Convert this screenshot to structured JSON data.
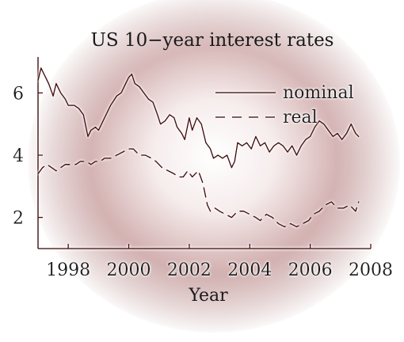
{
  "chart_data": {
    "type": "line",
    "title": "US 10−year interest rates",
    "xlabel": "Year",
    "ylabel": "",
    "xlim": [
      1997.0,
      2008.0
    ],
    "ylim": [
      1.0,
      7.0
    ],
    "x_ticks": [
      1998,
      2000,
      2002,
      2004,
      2006,
      2008
    ],
    "x_tick_labels": [
      "1998",
      "2000",
      "2002",
      "2004",
      "2006",
      "2008"
    ],
    "y_ticks": [
      2,
      4,
      6
    ],
    "y_tick_labels": [
      "2",
      "4",
      "6"
    ],
    "grid": false,
    "legend_position": "top-right",
    "series": [
      {
        "name": "nominal",
        "style": "solid",
        "color": "#4a0e0e",
        "x": [
          1997.0,
          1997.1,
          1997.2,
          1997.35,
          1997.5,
          1997.6,
          1997.75,
          1997.9,
          1998.0,
          1998.2,
          1998.35,
          1998.5,
          1998.65,
          1998.75,
          1998.9,
          1999.0,
          1999.2,
          1999.4,
          1999.6,
          1999.75,
          1999.9,
          2000.0,
          2000.1,
          2000.2,
          2000.35,
          2000.5,
          2000.65,
          2000.8,
          2000.95,
          2001.05,
          2001.2,
          2001.35,
          2001.5,
          2001.6,
          2001.75,
          2001.85,
          2002.0,
          2002.1,
          2002.25,
          2002.4,
          2002.55,
          2002.7,
          2002.8,
          2002.95,
          2003.1,
          2003.25,
          2003.4,
          2003.5,
          2003.6,
          2003.75,
          2003.9,
          2004.05,
          2004.2,
          2004.35,
          2004.5,
          2004.65,
          2004.8,
          2004.95,
          2005.1,
          2005.25,
          2005.4,
          2005.55,
          2005.7,
          2005.85,
          2006.0,
          2006.15,
          2006.3,
          2006.45,
          2006.6,
          2006.75,
          2006.9,
          2007.05,
          2007.2,
          2007.35,
          2007.5,
          2007.6
        ],
        "values": [
          6.4,
          6.8,
          6.6,
          6.3,
          5.9,
          6.3,
          6.0,
          5.8,
          5.6,
          5.6,
          5.5,
          5.3,
          4.6,
          4.8,
          4.9,
          4.8,
          5.2,
          5.6,
          5.9,
          6.0,
          6.3,
          6.5,
          6.6,
          6.3,
          6.2,
          6.0,
          5.8,
          5.7,
          5.3,
          5.0,
          5.1,
          5.3,
          5.2,
          4.9,
          4.7,
          4.5,
          5.2,
          4.8,
          5.2,
          5.0,
          4.4,
          4.2,
          3.9,
          4.0,
          3.9,
          4.0,
          3.6,
          3.8,
          4.4,
          4.3,
          4.4,
          4.2,
          4.6,
          4.3,
          4.4,
          4.1,
          4.3,
          4.4,
          4.3,
          4.1,
          4.3,
          4.0,
          4.3,
          4.5,
          4.6,
          4.9,
          5.1,
          5.0,
          4.8,
          4.6,
          4.7,
          4.5,
          4.7,
          5.0,
          4.7,
          4.6
        ]
      },
      {
        "name": "real",
        "style": "dashed",
        "color": "#4a0e0e",
        "x": [
          1997.0,
          1997.15,
          1997.3,
          1997.45,
          1997.6,
          1997.75,
          1997.9,
          1998.05,
          1998.25,
          1998.4,
          1998.6,
          1998.75,
          1998.9,
          1999.05,
          1999.2,
          1999.4,
          1999.6,
          1999.8,
          2000.0,
          2000.15,
          2000.35,
          2000.55,
          2000.75,
          2000.9,
          2001.1,
          2001.3,
          2001.5,
          2001.65,
          2001.8,
          2001.95,
          2002.1,
          2002.3,
          2002.45,
          2002.6,
          2002.7,
          2002.85,
          2003.0,
          2003.2,
          2003.4,
          2003.6,
          2003.8,
          2004.0,
          2004.2,
          2004.35,
          2004.55,
          2004.75,
          2004.95,
          2005.15,
          2005.35,
          2005.55,
          2005.75,
          2005.95,
          2006.1,
          2006.3,
          2006.5,
          2006.7,
          2006.9,
          2007.1,
          2007.3,
          2007.5,
          2007.6
        ],
        "values": [
          3.4,
          3.6,
          3.7,
          3.6,
          3.5,
          3.6,
          3.7,
          3.7,
          3.7,
          3.8,
          3.8,
          3.7,
          3.8,
          3.8,
          3.9,
          3.9,
          4.0,
          4.1,
          4.2,
          4.2,
          4.0,
          4.0,
          3.9,
          3.8,
          3.6,
          3.5,
          3.4,
          3.3,
          3.3,
          3.5,
          3.3,
          3.5,
          3.1,
          2.4,
          2.2,
          2.3,
          2.2,
          2.1,
          2.0,
          2.2,
          2.2,
          2.1,
          2.0,
          1.9,
          2.1,
          2.0,
          1.8,
          1.7,
          1.8,
          1.7,
          1.8,
          1.9,
          2.1,
          2.2,
          2.4,
          2.5,
          2.3,
          2.3,
          2.4,
          2.2,
          2.5
        ]
      }
    ]
  }
}
